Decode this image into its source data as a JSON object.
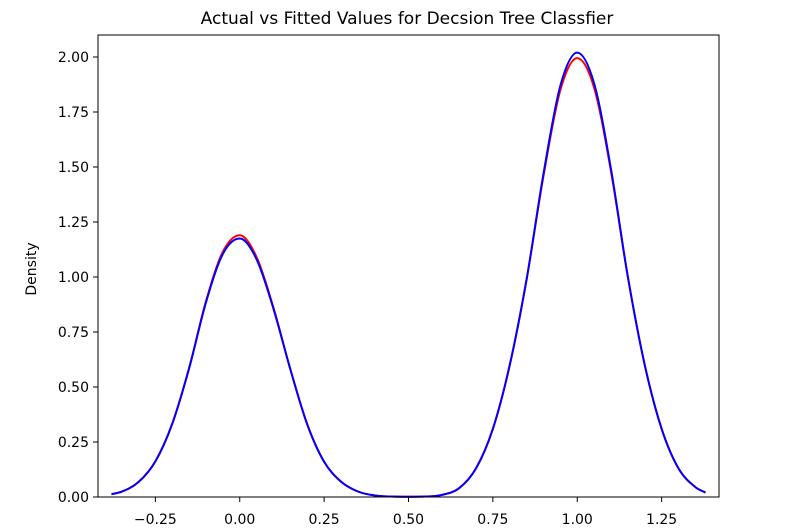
{
  "chart_data": {
    "type": "line",
    "title": "Actual vs Fitted Values for Decsion Tree Classfier",
    "xlabel": "",
    "ylabel": "Density",
    "xlim": [
      -0.42,
      1.42
    ],
    "ylim": [
      0,
      2.1
    ],
    "xticks": [
      -0.25,
      0.0,
      0.25,
      0.5,
      0.75,
      1.0,
      1.25
    ],
    "xtick_labels": [
      "−0.25",
      "0.00",
      "0.25",
      "0.50",
      "0.75",
      "1.00",
      "1.25"
    ],
    "yticks": [
      0.0,
      0.25,
      0.5,
      0.75,
      1.0,
      1.25,
      1.5,
      1.75,
      2.0
    ],
    "ytick_labels": [
      "0.00",
      "0.25",
      "0.50",
      "0.75",
      "1.00",
      "1.25",
      "1.50",
      "1.75",
      "2.00"
    ],
    "grid": false,
    "series": [
      {
        "color": "#ff0000",
        "x": [
          -0.38,
          -0.35,
          -0.3,
          -0.25,
          -0.2,
          -0.15,
          -0.1,
          -0.05,
          0.0,
          0.05,
          0.1,
          0.15,
          0.2,
          0.25,
          0.3,
          0.35,
          0.4,
          0.45,
          0.5,
          0.55,
          0.6,
          0.65,
          0.7,
          0.75,
          0.8,
          0.85,
          0.9,
          0.95,
          1.0,
          1.05,
          1.1,
          1.15,
          1.2,
          1.25,
          1.3,
          1.35,
          1.38
        ],
        "y": [
          0.013,
          0.024,
          0.068,
          0.162,
          0.333,
          0.587,
          0.89,
          1.115,
          1.19,
          1.09,
          0.86,
          0.58,
          0.33,
          0.16,
          0.07,
          0.025,
          0.007,
          0.002,
          0.001,
          0.002,
          0.01,
          0.04,
          0.13,
          0.31,
          0.6,
          0.99,
          1.46,
          1.85,
          1.995,
          1.86,
          1.48,
          1.0,
          0.6,
          0.31,
          0.13,
          0.045,
          0.02
        ]
      },
      {
        "color": "#0000ff",
        "x": [
          -0.38,
          -0.35,
          -0.3,
          -0.25,
          -0.2,
          -0.15,
          -0.1,
          -0.05,
          0.0,
          0.05,
          0.1,
          0.15,
          0.2,
          0.25,
          0.3,
          0.35,
          0.4,
          0.45,
          0.5,
          0.55,
          0.6,
          0.65,
          0.7,
          0.75,
          0.8,
          0.85,
          0.9,
          0.95,
          1.0,
          1.05,
          1.1,
          1.15,
          1.2,
          1.25,
          1.3,
          1.35,
          1.38
        ],
        "y": [
          0.013,
          0.024,
          0.068,
          0.162,
          0.333,
          0.585,
          0.885,
          1.105,
          1.175,
          1.08,
          0.855,
          0.58,
          0.33,
          0.16,
          0.07,
          0.025,
          0.007,
          0.002,
          0.001,
          0.002,
          0.01,
          0.04,
          0.13,
          0.31,
          0.6,
          0.99,
          1.47,
          1.87,
          2.02,
          1.88,
          1.49,
          1.0,
          0.6,
          0.31,
          0.13,
          0.045,
          0.02
        ]
      }
    ]
  }
}
